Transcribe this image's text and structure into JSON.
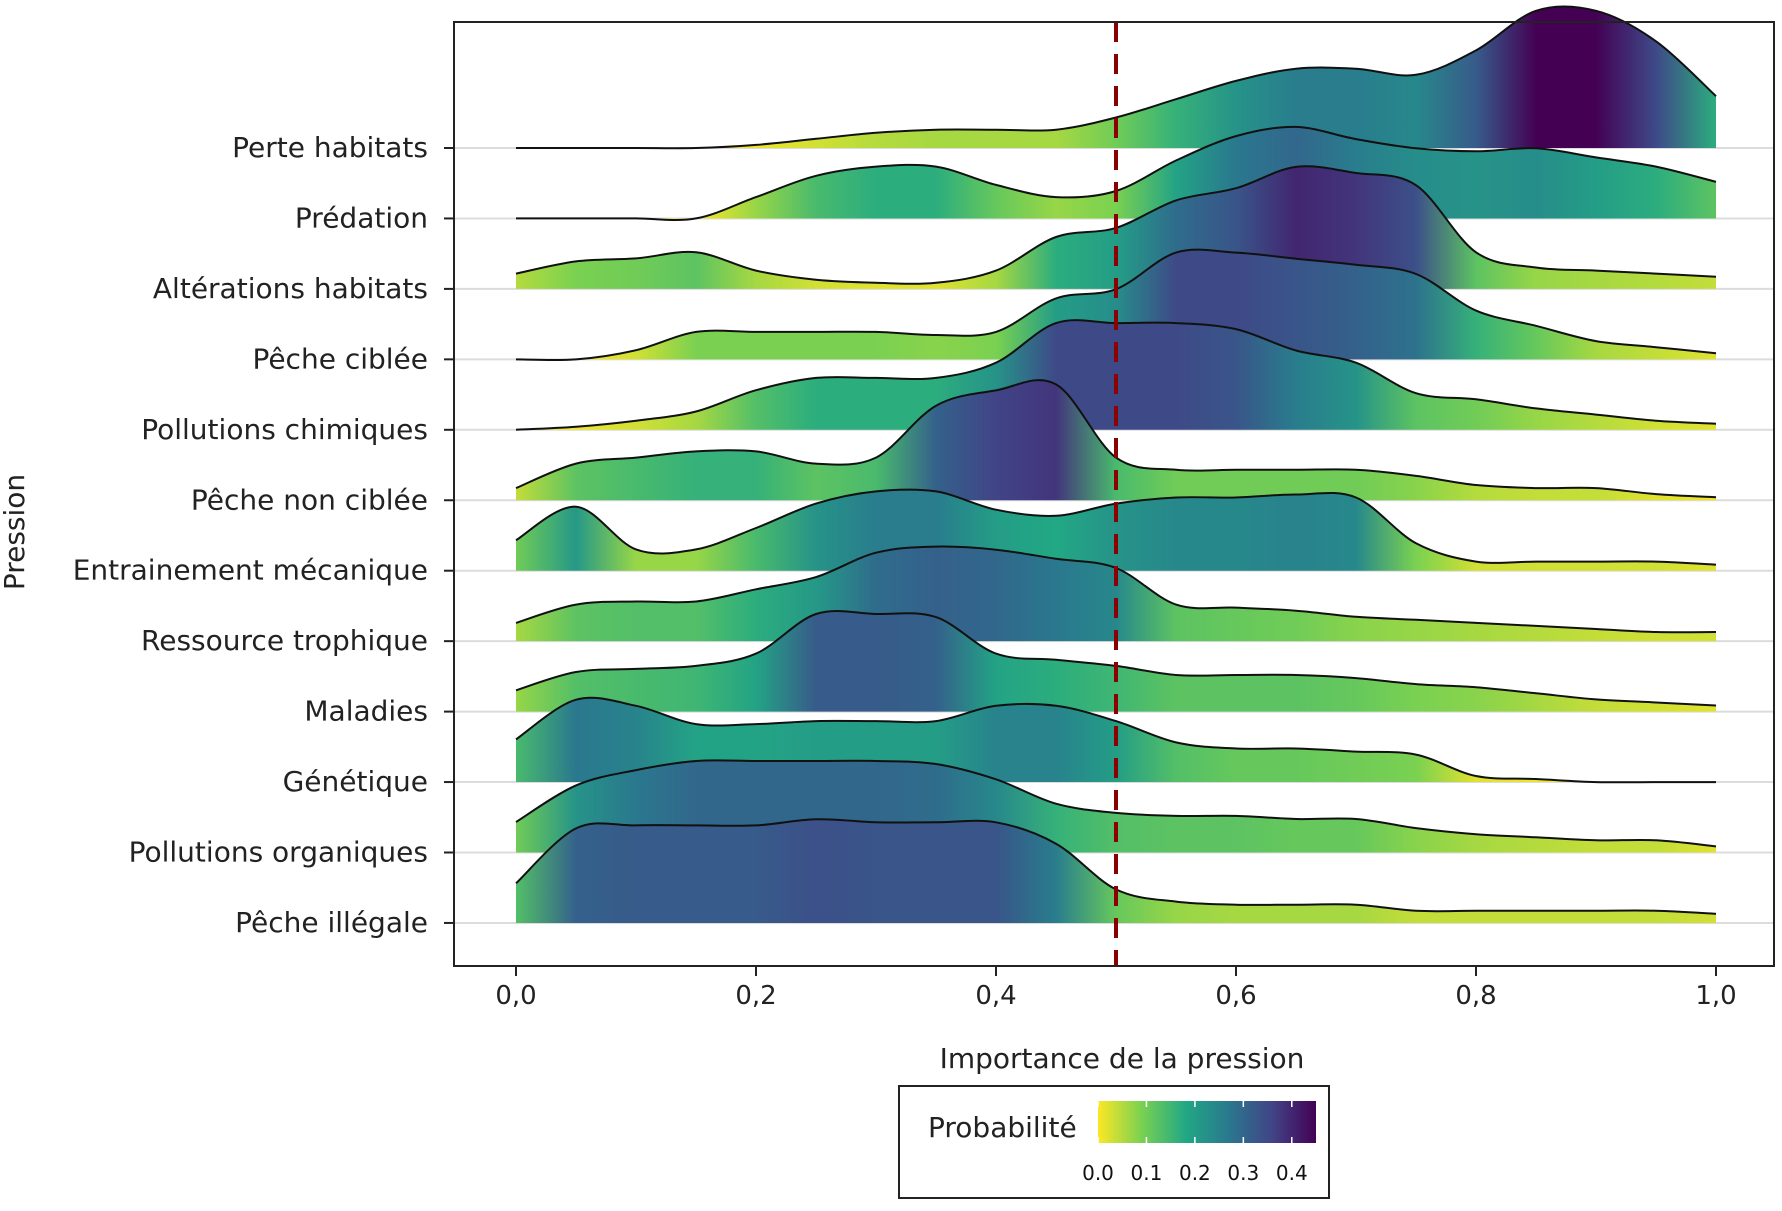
{
  "chart_data": {
    "type": "ridgeline",
    "xlabel": "Importance de la pression",
    "ylabel": "Pression",
    "xlim": [
      0,
      1
    ],
    "x_ticks": [
      "0,0",
      "0,2",
      "0,4",
      "0,6",
      "0,8",
      "1,0"
    ],
    "x_tick_values": [
      0,
      0.2,
      0.4,
      0.6,
      0.8,
      1.0
    ],
    "threshold": 0.5,
    "threshold_color": "#8b0000",
    "grid": true,
    "legend": {
      "title": "Probabilité",
      "ticks": [
        "0.0",
        "0.1",
        "0.2",
        "0.3",
        "0.4"
      ],
      "tick_values": [
        0,
        0.1,
        0.2,
        0.3,
        0.4
      ],
      "max": 0.45,
      "placement": "bottom",
      "colormap": [
        "#fde725",
        "#7ad151",
        "#22a884",
        "#2a788e",
        "#414487",
        "#440154"
      ]
    },
    "x": [
      0,
      0.05,
      0.1,
      0.15,
      0.2,
      0.25,
      0.3,
      0.35,
      0.4,
      0.45,
      0.5,
      0.55,
      0.6,
      0.65,
      0.7,
      0.75,
      0.8,
      0.85,
      0.9,
      0.95,
      1.0
    ],
    "series": [
      {
        "name": "Perte habitats",
        "values": [
          0,
          0,
          0,
          0,
          0.01,
          0.03,
          0.05,
          0.06,
          0.06,
          0.06,
          0.1,
          0.16,
          0.22,
          0.26,
          0.26,
          0.24,
          0.32,
          0.45,
          0.45,
          0.35,
          0.17
        ]
      },
      {
        "name": "Prédation",
        "values": [
          0,
          0,
          0,
          0,
          0.07,
          0.14,
          0.17,
          0.17,
          0.11,
          0.07,
          0.09,
          0.19,
          0.27,
          0.3,
          0.26,
          0.23,
          0.22,
          0.23,
          0.2,
          0.17,
          0.12
        ]
      },
      {
        "name": "Altérations habitats",
        "values": [
          0.05,
          0.09,
          0.1,
          0.12,
          0.06,
          0.03,
          0.02,
          0.02,
          0.06,
          0.17,
          0.2,
          0.29,
          0.33,
          0.4,
          0.38,
          0.34,
          0.12,
          0.07,
          0.06,
          0.05,
          0.04
        ]
      },
      {
        "name": "Pêche ciblée",
        "values": [
          0,
          0,
          0.03,
          0.09,
          0.09,
          0.09,
          0.09,
          0.08,
          0.09,
          0.2,
          0.23,
          0.35,
          0.35,
          0.33,
          0.31,
          0.28,
          0.16,
          0.11,
          0.06,
          0.04,
          0.02
        ]
      },
      {
        "name": "Pollutions chimiques",
        "values": [
          0,
          0.01,
          0.03,
          0.06,
          0.13,
          0.17,
          0.17,
          0.17,
          0.22,
          0.35,
          0.35,
          0.35,
          0.33,
          0.26,
          0.22,
          0.12,
          0.1,
          0.07,
          0.05,
          0.03,
          0.02
        ]
      },
      {
        "name": "Pêche non ciblée",
        "values": [
          0.04,
          0.12,
          0.14,
          0.16,
          0.16,
          0.12,
          0.14,
          0.31,
          0.36,
          0.38,
          0.14,
          0.1,
          0.1,
          0.1,
          0.1,
          0.08,
          0.05,
          0.04,
          0.04,
          0.02,
          0.01
        ]
      },
      {
        "name": "Entrainement mécanique",
        "values": [
          0.1,
          0.21,
          0.07,
          0.07,
          0.14,
          0.22,
          0.26,
          0.26,
          0.2,
          0.18,
          0.22,
          0.24,
          0.24,
          0.25,
          0.24,
          0.09,
          0.03,
          0.03,
          0.03,
          0.03,
          0.02
        ]
      },
      {
        "name": "Ressource trophique",
        "values": [
          0.06,
          0.12,
          0.13,
          0.13,
          0.17,
          0.21,
          0.29,
          0.31,
          0.3,
          0.27,
          0.24,
          0.12,
          0.11,
          0.1,
          0.08,
          0.07,
          0.06,
          0.05,
          0.04,
          0.03,
          0.03
        ]
      },
      {
        "name": "Maladies",
        "values": [
          0.07,
          0.13,
          0.14,
          0.15,
          0.19,
          0.32,
          0.32,
          0.31,
          0.19,
          0.17,
          0.15,
          0.12,
          0.12,
          0.12,
          0.11,
          0.09,
          0.08,
          0.06,
          0.04,
          0.03,
          0.02
        ]
      },
      {
        "name": "Génétique",
        "values": [
          0.14,
          0.27,
          0.25,
          0.19,
          0.19,
          0.2,
          0.2,
          0.2,
          0.25,
          0.25,
          0.2,
          0.13,
          0.11,
          0.11,
          0.1,
          0.09,
          0.02,
          0.01,
          0,
          0,
          0
        ]
      },
      {
        "name": "Pollutions organiques",
        "values": [
          0.1,
          0.22,
          0.27,
          0.3,
          0.3,
          0.3,
          0.3,
          0.29,
          0.24,
          0.16,
          0.13,
          0.12,
          0.12,
          0.11,
          0.11,
          0.08,
          0.06,
          0.05,
          0.04,
          0.04,
          0.02
        ]
      },
      {
        "name": "Pêche illégale",
        "values": [
          0.13,
          0.31,
          0.32,
          0.32,
          0.32,
          0.34,
          0.33,
          0.33,
          0.33,
          0.26,
          0.11,
          0.07,
          0.06,
          0.06,
          0.06,
          0.04,
          0.04,
          0.04,
          0.04,
          0.04,
          0.03
        ]
      }
    ]
  }
}
